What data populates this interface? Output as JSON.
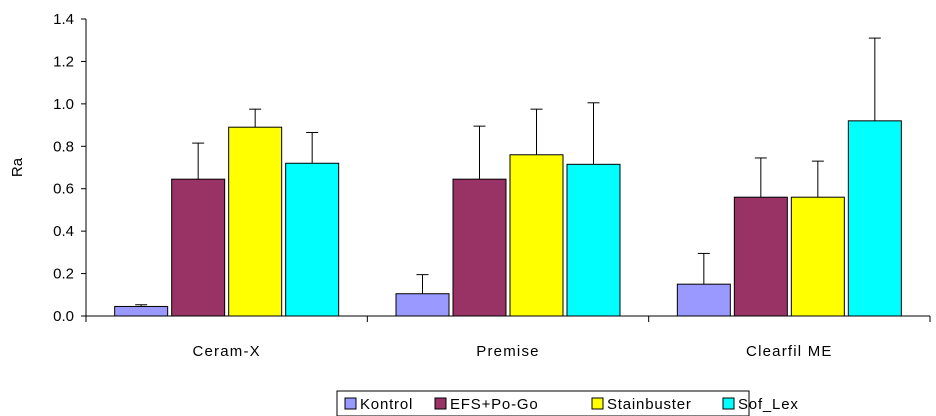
{
  "chart_data": {
    "type": "bar",
    "title": "",
    "xlabel": "",
    "ylabel": "Ra",
    "ylim": [
      0,
      1.4
    ],
    "yticks": [
      "0.0",
      "0.2",
      "0.4",
      "0.6",
      "0.8",
      "1.0",
      "1.2",
      "1.4"
    ],
    "categories": [
      "Ceram-X",
      "Premise",
      "Clearfil ME"
    ],
    "grid": false,
    "legend_position": "bottom",
    "error_bars": "upper",
    "series": [
      {
        "name": "Kontrol",
        "color": "#9999FF",
        "values": [
          0.045,
          0.105,
          0.15
        ],
        "errors": [
          0.008,
          0.09,
          0.145
        ]
      },
      {
        "name": "EFS+Po-Go",
        "color": "#993366",
        "values": [
          0.645,
          0.645,
          0.56
        ],
        "errors": [
          0.17,
          0.25,
          0.185
        ]
      },
      {
        "name": "Stainbuster",
        "color": "#FFFF00",
        "values": [
          0.89,
          0.76,
          0.56
        ],
        "errors": [
          0.085,
          0.215,
          0.17
        ]
      },
      {
        "name": "Sof_Lex",
        "color": "#00FFFF",
        "values": [
          0.72,
          0.715,
          0.92
        ],
        "errors": [
          0.145,
          0.29,
          0.39
        ]
      }
    ]
  }
}
